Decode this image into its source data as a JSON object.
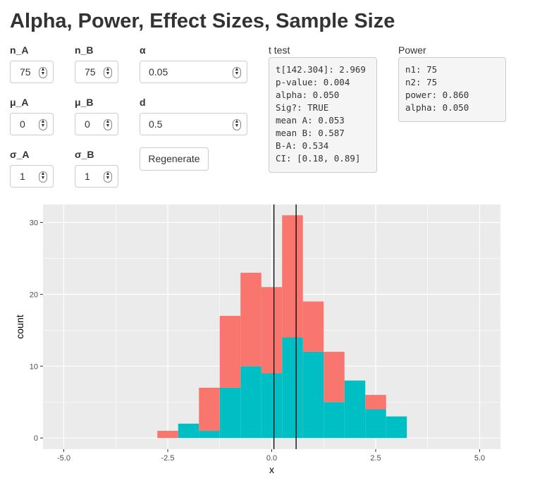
{
  "header": {
    "title": "Alpha, Power, Effect Sizes, Sample Size"
  },
  "inputs": [
    {
      "label": "n_A",
      "value": "75"
    },
    {
      "label": "n_B",
      "value": "75"
    },
    {
      "label": "α",
      "value": "0.05"
    },
    {
      "label": "μ_A",
      "value": "0"
    },
    {
      "label": "μ_B",
      "value": "0"
    },
    {
      "label": "d",
      "value": "0.5"
    },
    {
      "label": "σ_A",
      "value": "1"
    },
    {
      "label": "σ_B",
      "value": "1"
    }
  ],
  "button": {
    "label": "Regenerate"
  },
  "ttest": {
    "label": "t test",
    "lines": [
      "t[142.304]: 2.969",
      "p-value: 0.004",
      "alpha: 0.050",
      "Sig?: TRUE",
      "mean A: 0.053",
      "mean B: 0.587",
      "B-A: 0.534",
      "CI: [0.18, 0.89]"
    ]
  },
  "power": {
    "label": "Power",
    "lines": [
      "n1: 75",
      "n2: 75",
      "power: 0.860",
      "alpha: 0.050"
    ]
  },
  "chart_data": {
    "type": "histogram",
    "stacked": true,
    "x_label": "x",
    "y_label": "count",
    "bins": [
      -2.75,
      -2.25,
      -1.75,
      -1.25,
      -0.75,
      -0.25,
      0.25,
      0.75,
      1.25,
      1.75,
      2.25,
      2.75,
      3.25
    ],
    "series": [
      {
        "color": "#00BFC4",
        "values": [
          0,
          2,
          1,
          7,
          10,
          9,
          14,
          12,
          5,
          8,
          4,
          3
        ]
      },
      {
        "color": "#F8766D",
        "values": [
          1,
          0,
          6,
          10,
          13,
          12,
          17,
          7,
          7,
          0,
          2,
          0
        ]
      }
    ],
    "vlines": [
      0.053,
      0.587
    ],
    "xlim": [
      -5.5,
      5.5
    ],
    "ylim": [
      -1.55,
      32.5
    ],
    "xticks": [
      {
        "value": -5,
        "label": "-5.0"
      },
      {
        "value": -2.5,
        "label": "-2.5"
      },
      {
        "value": 0,
        "label": "0.0"
      },
      {
        "value": 2.5,
        "label": "2.5"
      },
      {
        "value": 5,
        "label": "5.0"
      }
    ],
    "yticks": [
      0,
      10,
      20,
      30
    ],
    "grid": true
  }
}
